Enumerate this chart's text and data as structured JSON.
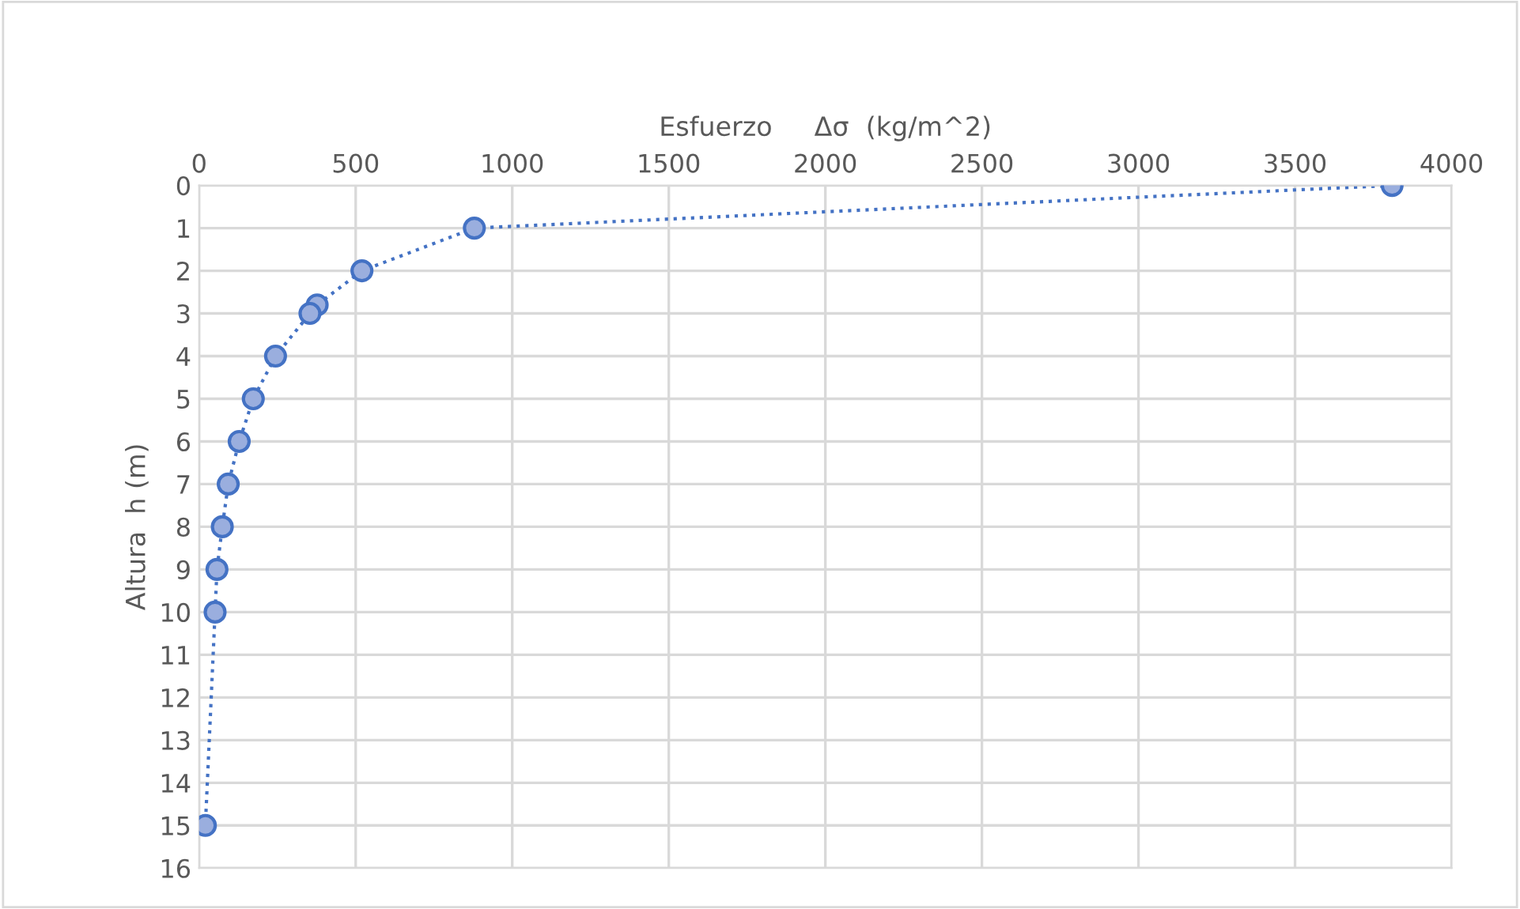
{
  "chart_data": {
    "type": "line",
    "xlabel": "Esfuerzo     Δσ  (kg/m^2)",
    "ylabel": "Altura  h (m)",
    "x": [
      3810,
      879,
      520,
      377,
      354,
      244,
      173,
      128,
      93,
      74,
      57,
      51,
      20
    ],
    "series": [
      {
        "color": "#4472c4",
        "values": [
          0,
          1,
          2,
          2.8,
          3,
          4,
          5,
          6,
          7,
          8,
          9,
          10,
          15
        ]
      }
    ],
    "xlim": [
      0,
      4000
    ],
    "xticks": [
      0,
      500,
      1000,
      1500,
      2000,
      2500,
      3000,
      3500,
      4000
    ],
    "ylim": [
      16,
      0
    ],
    "yticks": [
      0,
      1,
      2,
      3,
      4,
      5,
      6,
      7,
      8,
      9,
      10,
      11,
      12,
      13,
      14,
      15,
      16
    ],
    "grid": true,
    "marker": "circle",
    "line_style": "dotted",
    "legend": false
  }
}
